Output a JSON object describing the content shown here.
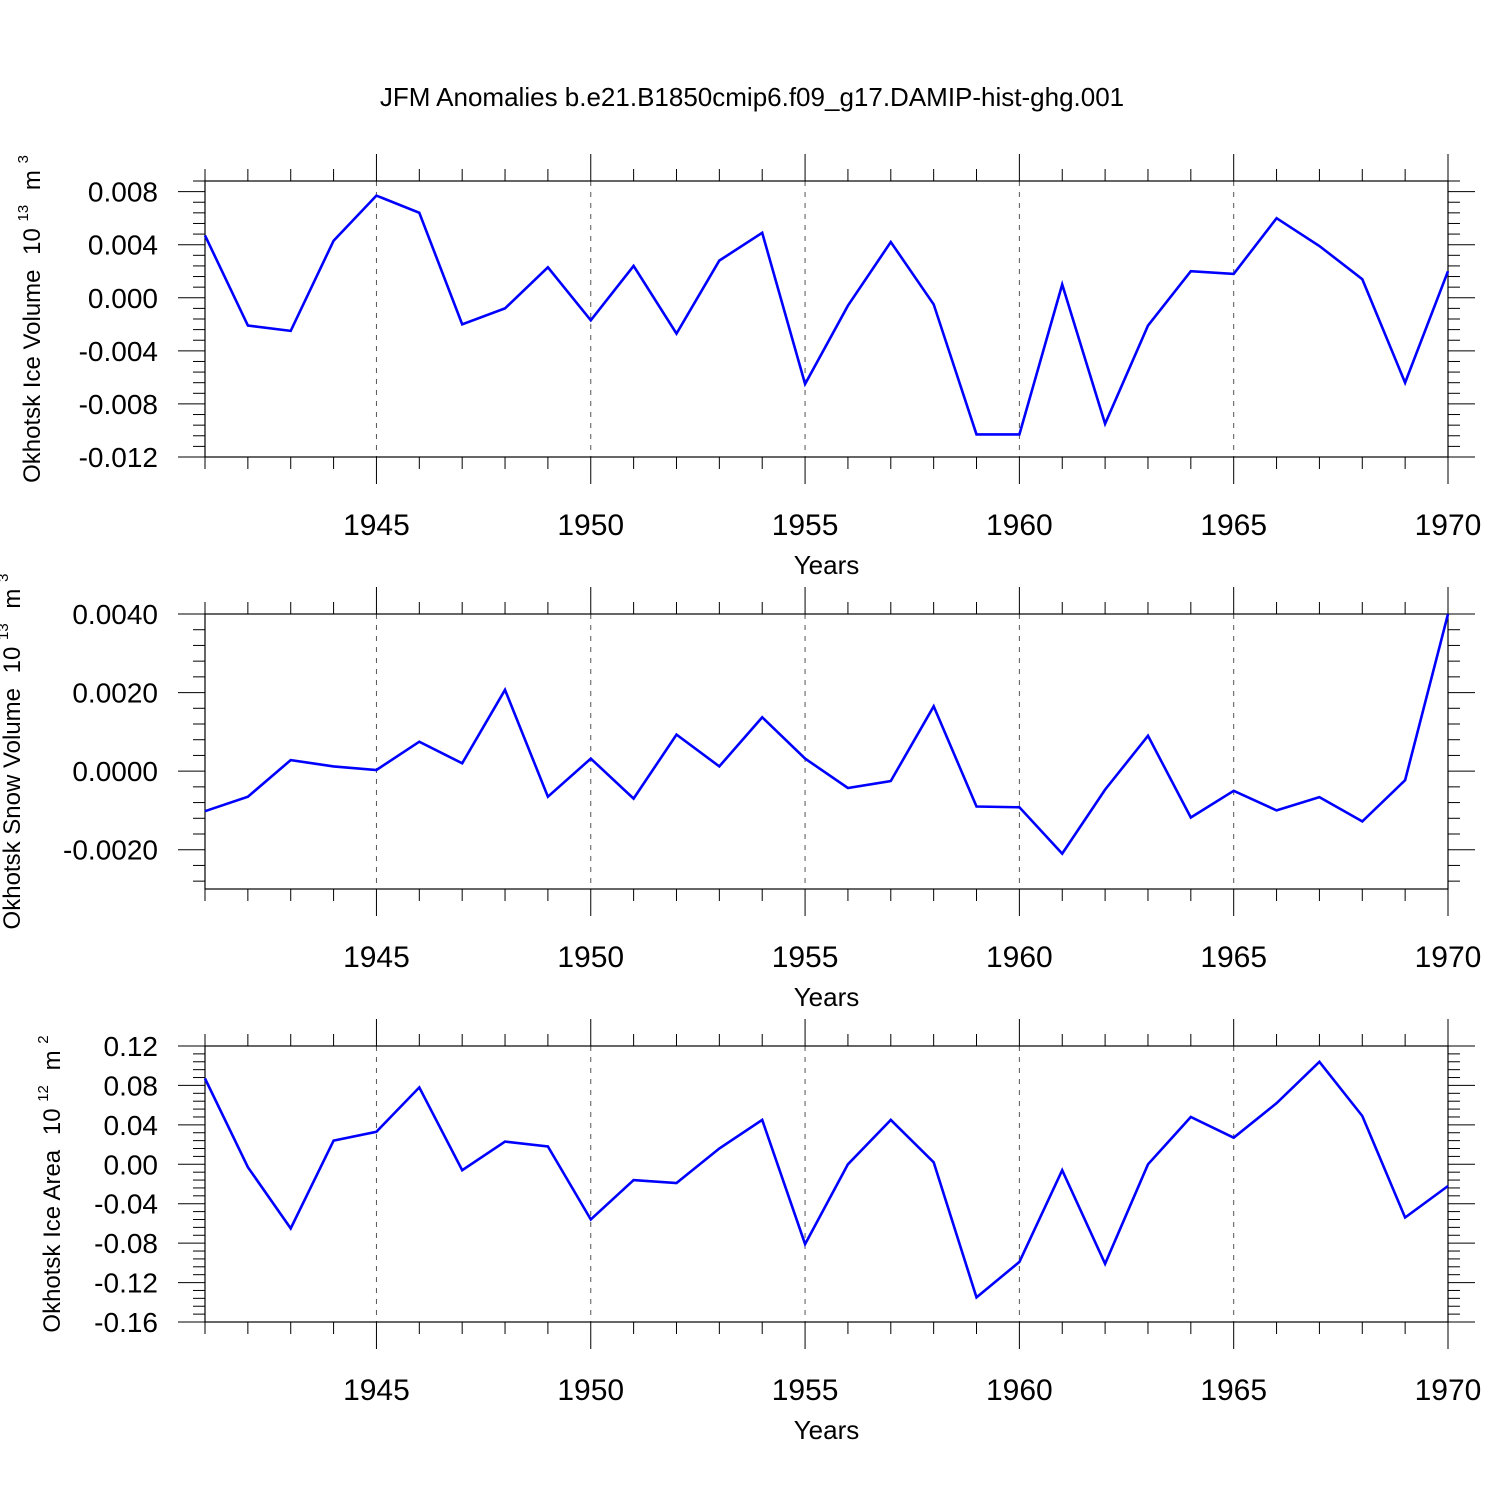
{
  "title": "JFM Anomalies b.e21.B1850cmip6.f09_g17.DAMIP-hist-ghg.001",
  "chart_data": [
    {
      "type": "line",
      "name": "okhotsk-ice-volume",
      "ylabel": "Okhotsk Ice Volume",
      "ylabel_unit_base": "10",
      "ylabel_unit_exp": "13",
      "ylabel_unit_symbol": "m",
      "ylabel_unit_sym_exp": "3",
      "xlabel": "Years",
      "xlim": [
        1941,
        1970
      ],
      "ylim": [
        -0.012,
        0.0088
      ],
      "yticks": [
        -0.012,
        -0.008,
        -0.004,
        0.0,
        0.004,
        0.008
      ],
      "ytick_labels": [
        "-0.012",
        "-0.008",
        "-0.004",
        "0.000",
        "0.004",
        "0.008"
      ],
      "xticks": [
        1945,
        1950,
        1955,
        1960,
        1965,
        1970
      ],
      "xtick_labels": [
        "1945",
        "1950",
        "1955",
        "1960",
        "1965",
        "1970"
      ],
      "x": [
        1941,
        1942,
        1943,
        1944,
        1945,
        1946,
        1947,
        1948,
        1949,
        1950,
        1951,
        1952,
        1953,
        1954,
        1955,
        1956,
        1957,
        1958,
        1959,
        1960,
        1961,
        1962,
        1963,
        1964,
        1965,
        1966,
        1967,
        1968,
        1969,
        1970
      ],
      "values": [
        0.0047,
        -0.0021,
        -0.0025,
        0.0043,
        0.0077,
        0.0064,
        -0.002,
        -0.0008,
        0.0023,
        -0.0017,
        0.0024,
        -0.0027,
        0.0028,
        0.0049,
        -0.0065,
        -0.0006,
        0.0042,
        -0.0005,
        -0.0103,
        -0.0103,
        0.001,
        -0.0095,
        -0.0021,
        0.002,
        0.0018,
        0.006,
        0.0039,
        0.0014,
        -0.0064,
        0.002
      ],
      "color": "#0000ff"
    },
    {
      "type": "line",
      "name": "okhotsk-snow-volume",
      "ylabel": "Okhotsk Snow Volume",
      "ylabel_unit_base": "10",
      "ylabel_unit_exp": "13",
      "ylabel_unit_symbol": "m",
      "ylabel_unit_sym_exp": "3",
      "xlabel": "Years",
      "xlim": [
        1941,
        1970
      ],
      "ylim": [
        -0.003,
        0.004
      ],
      "yticks": [
        -0.002,
        0.0,
        0.002,
        0.004
      ],
      "ytick_labels": [
        "-0.0020",
        "0.0000",
        "0.0020",
        "0.0040"
      ],
      "xticks": [
        1945,
        1950,
        1955,
        1960,
        1965,
        1970
      ],
      "xtick_labels": [
        "1945",
        "1950",
        "1955",
        "1960",
        "1965",
        "1970"
      ],
      "x": [
        1941,
        1942,
        1943,
        1944,
        1945,
        1946,
        1947,
        1948,
        1949,
        1950,
        1951,
        1952,
        1953,
        1954,
        1955,
        1956,
        1957,
        1958,
        1959,
        1960,
        1961,
        1962,
        1963,
        1964,
        1965,
        1966,
        1967,
        1968,
        1969,
        1970
      ],
      "values": [
        -0.00102,
        -0.00065,
        0.00028,
        0.00012,
        3e-05,
        0.00075,
        0.0002,
        0.00207,
        -0.00065,
        0.00032,
        -0.0007,
        0.00093,
        0.00012,
        0.00137,
        0.00032,
        -0.00043,
        -0.00025,
        0.00165,
        -0.0009,
        -0.00092,
        -0.0021,
        -0.00047,
        0.0009,
        -0.00118,
        -0.0005,
        -0.001,
        -0.00066,
        -0.00128,
        -0.00023,
        0.004
      ],
      "color": "#0000ff"
    },
    {
      "type": "line",
      "name": "okhotsk-ice-area",
      "ylabel": "Okhotsk Ice Area",
      "ylabel_unit_base": "10",
      "ylabel_unit_exp": "12",
      "ylabel_unit_symbol": "m",
      "ylabel_unit_sym_exp": "2",
      "xlabel": "Years",
      "xlim": [
        1941,
        1970
      ],
      "ylim": [
        -0.16,
        0.12
      ],
      "yticks": [
        -0.16,
        -0.12,
        -0.08,
        -0.04,
        0.0,
        0.04,
        0.08,
        0.12
      ],
      "ytick_labels": [
        "-0.16",
        "-0.12",
        "-0.08",
        "-0.04",
        "0.00",
        "0.04",
        "0.08",
        "0.12"
      ],
      "xticks": [
        1945,
        1950,
        1955,
        1960,
        1965,
        1970
      ],
      "xtick_labels": [
        "1945",
        "1950",
        "1955",
        "1960",
        "1965",
        "1970"
      ],
      "x": [
        1941,
        1942,
        1943,
        1944,
        1945,
        1946,
        1947,
        1948,
        1949,
        1950,
        1951,
        1952,
        1953,
        1954,
        1955,
        1956,
        1957,
        1958,
        1959,
        1960,
        1961,
        1962,
        1963,
        1964,
        1965,
        1966,
        1967,
        1968,
        1969,
        1970
      ],
      "values": [
        0.087,
        -0.003,
        -0.065,
        0.024,
        0.033,
        0.078,
        -0.006,
        0.023,
        0.018,
        -0.056,
        -0.016,
        -0.019,
        0.016,
        0.045,
        -0.081,
        0.0,
        0.045,
        0.002,
        -0.135,
        -0.099,
        -0.006,
        -0.101,
        0.0,
        0.048,
        0.027,
        0.062,
        0.104,
        0.049,
        -0.054,
        -0.022
      ],
      "color": "#0000ff"
    }
  ]
}
